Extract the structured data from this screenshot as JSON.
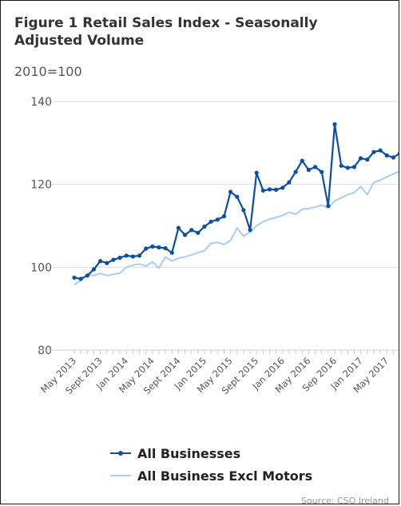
{
  "header": {
    "title": "Figure 1 Retail Sales Index - Seasonally Adjusted Volume",
    "subtitle": "2010=100"
  },
  "legend": {
    "items": [
      {
        "label": "All Businesses",
        "color": "#0b4ea2"
      },
      {
        "label": "All Business Excl Motors",
        "color": "#a9cdf2"
      }
    ]
  },
  "credit": "Source: CSO Ireland",
  "chart_data": {
    "type": "line",
    "title": "Figure 1 Retail Sales Index - Seasonally Adjusted Volume",
    "subtitle": "2010=100",
    "xlabel": "",
    "ylabel": "",
    "ylim": [
      80,
      140
    ],
    "yticks": [
      80,
      100,
      120,
      140
    ],
    "grid": true,
    "legend_position": "bottom",
    "x": [
      "May 2013",
      "Jun 2013",
      "Jul 2013",
      "Aug 2013",
      "Sep 2013",
      "Oct 2013",
      "Nov 2013",
      "Dec 2013",
      "Jan 2014",
      "Feb 2014",
      "Mar 2014",
      "Apr 2014",
      "May 2014",
      "Jun 2014",
      "Jul 2014",
      "Aug 2014",
      "Sep 2014",
      "Oct 2014",
      "Nov 2014",
      "Dec 2014",
      "Jan 2015",
      "Feb 2015",
      "Mar 2015",
      "Apr 2015",
      "May 2015",
      "Jun 2015",
      "Jul 2015",
      "Aug 2015",
      "Sep 2015",
      "Oct 2015",
      "Nov 2015",
      "Dec 2015",
      "Jan 2016",
      "Feb 2016",
      "Mar 2016",
      "Apr 2016",
      "May 2016",
      "Jun 2016",
      "Jul 2016",
      "Aug 2016",
      "Sep 2016",
      "Oct 2016",
      "Nov 2016",
      "Dec 2016",
      "Jan 2017",
      "Feb 2017",
      "Mar 2017",
      "Apr 2017",
      "May 2017",
      "Jun 2017",
      "Jul 2017"
    ],
    "tick_labels": [
      "May 2013",
      "Sept 2013",
      "Jan 2014",
      "May 2014",
      "Sept 2014",
      "Jan 2015",
      "May 2015",
      "Sept 2015",
      "Jan 2016",
      "May 2016",
      "Sep 2016",
      "Jan 2017",
      "May 2017"
    ],
    "tick_every": 4,
    "series": [
      {
        "name": "All Businesses",
        "color": "#0b4ea2",
        "values": [
          97.5,
          97.2,
          98.0,
          99.5,
          101.5,
          101.0,
          101.8,
          102.3,
          102.8,
          102.6,
          102.8,
          104.5,
          105.0,
          104.8,
          104.6,
          103.5,
          109.5,
          107.8,
          109.0,
          108.3,
          109.8,
          111.0,
          111.5,
          112.3,
          118.2,
          117.0,
          113.8,
          109.0,
          122.8,
          118.5,
          118.8,
          118.7,
          119.2,
          120.5,
          123.0,
          125.7,
          123.5,
          124.2,
          123.0,
          114.8,
          134.5,
          124.5,
          124.0,
          124.2,
          126.3,
          126.0,
          127.8,
          128.2,
          127.0,
          126.5,
          127.5
        ]
      },
      {
        "name": "All Business Excl Motors",
        "color": "#a9cdf2",
        "values": [
          95.8,
          96.8,
          98.2,
          98.0,
          98.5,
          98.0,
          98.3,
          98.6,
          100.0,
          100.5,
          100.8,
          100.3,
          101.3,
          99.8,
          102.5,
          101.5,
          102.2,
          102.5,
          103.0,
          103.5,
          104.0,
          105.8,
          106.0,
          105.5,
          106.5,
          109.5,
          107.5,
          108.5,
          110.0,
          111.0,
          111.6,
          112.0,
          112.5,
          113.3,
          112.8,
          114.0,
          114.2,
          114.5,
          115.0,
          114.3,
          116.0,
          116.8,
          117.5,
          118.0,
          119.5,
          117.5,
          120.5,
          121.0,
          121.8,
          122.5,
          123.2
        ]
      }
    ]
  }
}
